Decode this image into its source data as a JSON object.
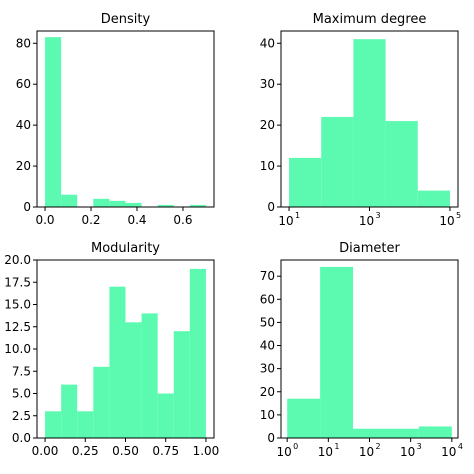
{
  "chart_data": [
    {
      "type": "bar",
      "title": "Density",
      "xscale": "linear",
      "xlim": [
        -0.035,
        0.735
      ],
      "ylim": [
        0,
        86
      ],
      "xticks": [
        0.0,
        0.2,
        0.4,
        0.6
      ],
      "xtick_labels": [
        "0.0",
        "0.2",
        "0.4",
        "0.6"
      ],
      "yticks": [
        0,
        20,
        40,
        60,
        80
      ],
      "ytick_labels": [
        "0",
        "20",
        "40",
        "60",
        "80"
      ],
      "bin_edges": [
        0.0,
        0.07,
        0.14,
        0.21,
        0.28,
        0.35,
        0.42,
        0.49,
        0.56,
        0.63,
        0.7
      ],
      "values": [
        83,
        6,
        0,
        4,
        3,
        2,
        0,
        1,
        0,
        1
      ],
      "color": "#5cfab0"
    },
    {
      "type": "bar",
      "title": "Maximum degree",
      "xscale": "log",
      "xlim": [
        0.8,
        5.2
      ],
      "ylim": [
        0,
        43
      ],
      "xticks": [
        1,
        3,
        5
      ],
      "xtick_labels": [
        "10",
        "10",
        "10"
      ],
      "xtick_exponents": [
        "1",
        "3",
        "5"
      ],
      "yticks": [
        0,
        10,
        20,
        30,
        40
      ],
      "ytick_labels": [
        "0",
        "10",
        "20",
        "30",
        "40"
      ],
      "bin_edges": [
        1.0,
        1.8,
        2.6,
        3.4,
        4.2,
        5.0
      ],
      "values": [
        12,
        22,
        41,
        21,
        4
      ],
      "color": "#5cfab0"
    },
    {
      "type": "bar",
      "title": "Modularity",
      "xscale": "linear",
      "xlim": [
        -0.05,
        1.05
      ],
      "ylim": [
        0,
        20
      ],
      "xticks": [
        0.0,
        0.25,
        0.5,
        0.75,
        1.0
      ],
      "xtick_labels": [
        "0.00",
        "0.25",
        "0.50",
        "0.75",
        "1.00"
      ],
      "yticks": [
        0,
        2.5,
        5,
        7.5,
        10,
        12.5,
        15,
        17.5,
        20
      ],
      "ytick_labels": [
        "0.0",
        "2.5",
        "5.0",
        "7.5",
        "10.0",
        "12.5",
        "15.0",
        "17.5",
        "20.0"
      ],
      "bin_edges": [
        0.0,
        0.1,
        0.2,
        0.3,
        0.4,
        0.5,
        0.6,
        0.7,
        0.8,
        0.9,
        1.0
      ],
      "values": [
        3,
        6,
        3,
        8,
        17,
        13,
        14,
        5,
        12,
        19
      ],
      "color": "#5cfab0"
    },
    {
      "type": "bar",
      "title": "Diameter",
      "xscale": "log",
      "xlim": [
        -0.15,
        4.15
      ],
      "ylim": [
        0,
        77
      ],
      "xticks": [
        0,
        1,
        2,
        3,
        4
      ],
      "xtick_labels": [
        "10",
        "10",
        "10",
        "10",
        "10"
      ],
      "xtick_exponents": [
        "0",
        "1",
        "2",
        "3",
        "4"
      ],
      "yticks": [
        0,
        10,
        20,
        30,
        40,
        50,
        60,
        70
      ],
      "ytick_labels": [
        "0",
        "10",
        "20",
        "30",
        "40",
        "50",
        "60",
        "70"
      ],
      "bin_edges": [
        0.0,
        0.8,
        1.6,
        2.4,
        3.2,
        4.0
      ],
      "values": [
        17,
        74,
        4,
        4,
        5
      ],
      "color": "#5cfab0"
    }
  ]
}
